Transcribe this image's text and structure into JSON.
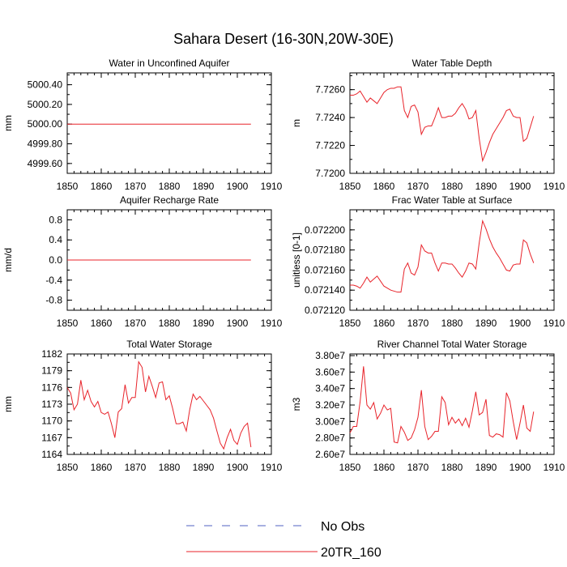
{
  "figure": {
    "title": "Sahara Desert (16-30N,20W-30E)"
  },
  "legend": {
    "entries": [
      {
        "label": "No Obs",
        "color": "#5060c0",
        "dash": true
      },
      {
        "label": "20TR_160",
        "color": "#e8232a",
        "dash": false
      }
    ]
  },
  "chart_data": [
    {
      "type": "line",
      "title": "Water in Unconfined Aquifer",
      "ylabel": "mm",
      "xlim": [
        1850,
        1910
      ],
      "xticks": [
        "1850",
        "1860",
        "1870",
        "1880",
        "1890",
        "1900",
        "1910"
      ],
      "ylim": [
        4999.5,
        5000.52
      ],
      "yticks": [
        "4999.60",
        "4999.80",
        "5000.00",
        "5000.20",
        "5000.40"
      ],
      "ytick_values": [
        4999.6,
        4999.8,
        5000.0,
        5000.2,
        5000.4
      ],
      "series": [
        {
          "name": "20TR_160",
          "color": "#e8232a",
          "x": [
            1850,
            1904
          ],
          "y": [
            5000.0,
            5000.0
          ]
        }
      ]
    },
    {
      "type": "line",
      "title": "Water Table Depth",
      "ylabel": "m",
      "xlim": [
        1850,
        1910
      ],
      "xticks": [
        "1850",
        "1860",
        "1870",
        "1880",
        "1890",
        "1900",
        "1910"
      ],
      "ylim": [
        7.72,
        7.7272
      ],
      "yticks": [
        "7.7200",
        "7.7220",
        "7.7240",
        "7.7260"
      ],
      "ytick_values": [
        7.72,
        7.722,
        7.724,
        7.726
      ],
      "series": [
        {
          "name": "20TR_160",
          "color": "#e8232a",
          "x": [
            1850,
            1851,
            1852,
            1853,
            1854,
            1855,
            1856,
            1857,
            1858,
            1859,
            1860,
            1861,
            1862,
            1863,
            1864,
            1865,
            1866,
            1867,
            1868,
            1869,
            1870,
            1871,
            1872,
            1873,
            1874,
            1875,
            1876,
            1877,
            1878,
            1879,
            1880,
            1881,
            1882,
            1883,
            1884,
            1885,
            1886,
            1887,
            1888,
            1889,
            1890,
            1891,
            1892,
            1893,
            1894,
            1895,
            1896,
            1897,
            1898,
            1899,
            1900,
            1901,
            1902,
            1903,
            1904
          ],
          "y": [
            7.7256,
            7.7256,
            7.7257,
            7.7259,
            7.7255,
            7.7251,
            7.7254,
            7.7252,
            7.725,
            7.7254,
            7.7258,
            7.726,
            7.7261,
            7.7261,
            7.7262,
            7.7262,
            7.7245,
            7.724,
            7.7248,
            7.7249,
            7.7244,
            7.7228,
            7.7233,
            7.7234,
            7.7234,
            7.724,
            7.7247,
            7.724,
            7.724,
            7.7241,
            7.7241,
            7.7243,
            7.7247,
            7.725,
            7.7246,
            7.7239,
            7.724,
            7.7245,
            7.7225,
            7.7209,
            7.7215,
            7.7222,
            7.7228,
            7.7232,
            7.7236,
            7.724,
            7.7245,
            7.7246,
            7.7241,
            7.724,
            7.724,
            7.7223,
            7.7225,
            7.7233,
            7.7241
          ]
        }
      ]
    },
    {
      "type": "line",
      "title": "Aquifer Recharge Rate",
      "ylabel": "mm/d",
      "xlim": [
        1850,
        1910
      ],
      "xticks": [
        "1850",
        "1860",
        "1870",
        "1880",
        "1890",
        "1900",
        "1910"
      ],
      "ylim": [
        -1.0,
        1.0
      ],
      "yticks": [
        "-0.8",
        "-0.4",
        "0.0",
        "0.4",
        "0.8"
      ],
      "ytick_values": [
        -0.8,
        -0.4,
        0.0,
        0.4,
        0.8
      ],
      "series": [
        {
          "name": "20TR_160",
          "color": "#e8232a",
          "x": [
            1850,
            1904
          ],
          "y": [
            0.0,
            0.0
          ]
        }
      ]
    },
    {
      "type": "line",
      "title": "Frac Water Table at Surface",
      "ylabel": "unitless [0-1]",
      "xlim": [
        1850,
        1910
      ],
      "xticks": [
        "1850",
        "1860",
        "1870",
        "1880",
        "1890",
        "1900",
        "1910"
      ],
      "ylim": [
        0.07212,
        0.07222
      ],
      "yticks": [
        "0.072120",
        "0.072140",
        "0.072160",
        "0.072180",
        "0.072200"
      ],
      "ytick_values": [
        0.07212,
        0.07214,
        0.07216,
        0.07218,
        0.0722
      ],
      "series": [
        {
          "name": "20TR_160",
          "color": "#e8232a",
          "x": [
            1850,
            1851,
            1852,
            1853,
            1854,
            1855,
            1856,
            1857,
            1858,
            1859,
            1860,
            1861,
            1862,
            1863,
            1864,
            1865,
            1866,
            1867,
            1868,
            1869,
            1870,
            1871,
            1872,
            1873,
            1874,
            1875,
            1876,
            1877,
            1878,
            1879,
            1880,
            1881,
            1882,
            1883,
            1884,
            1885,
            1886,
            1887,
            1888,
            1889,
            1890,
            1891,
            1892,
            1893,
            1894,
            1895,
            1896,
            1897,
            1898,
            1899,
            1900,
            1901,
            1902,
            1903,
            1904
          ],
          "y": [
            0.072145,
            0.072145,
            0.072144,
            0.072142,
            0.072147,
            0.072153,
            0.072148,
            0.072151,
            0.072154,
            0.072149,
            0.072144,
            0.072142,
            0.07214,
            0.072139,
            0.072138,
            0.072138,
            0.072161,
            0.072167,
            0.072157,
            0.072155,
            0.072163,
            0.072185,
            0.072179,
            0.072177,
            0.072177,
            0.072167,
            0.072159,
            0.072167,
            0.072167,
            0.072166,
            0.072166,
            0.072162,
            0.072157,
            0.072153,
            0.072159,
            0.072167,
            0.072166,
            0.072161,
            0.072187,
            0.072209,
            0.072201,
            0.072191,
            0.072183,
            0.072177,
            0.072172,
            0.072166,
            0.07216,
            0.072159,
            0.072165,
            0.072166,
            0.072166,
            0.07219,
            0.072187,
            0.072176,
            0.072167
          ]
        }
      ]
    },
    {
      "type": "line",
      "title": "Total Water Storage",
      "ylabel": "mm",
      "xlim": [
        1850,
        1910
      ],
      "xticks": [
        "1850",
        "1860",
        "1870",
        "1880",
        "1890",
        "1900",
        "1910"
      ],
      "ylim": [
        1164,
        1182
      ],
      "yticks": [
        "1164",
        "1167",
        "1170",
        "1173",
        "1176",
        "1179",
        "1182"
      ],
      "ytick_values": [
        1164,
        1167,
        1170,
        1173,
        1176,
        1179,
        1182
      ],
      "series": [
        {
          "name": "20TR_160",
          "color": "#e8232a",
          "x": [
            1850,
            1851,
            1852,
            1853,
            1854,
            1855,
            1856,
            1857,
            1858,
            1859,
            1860,
            1861,
            1862,
            1863,
            1864,
            1865,
            1866,
            1867,
            1868,
            1869,
            1870,
            1871,
            1872,
            1873,
            1874,
            1875,
            1876,
            1877,
            1878,
            1879,
            1880,
            1881,
            1882,
            1883,
            1884,
            1885,
            1886,
            1887,
            1888,
            1889,
            1890,
            1891,
            1892,
            1893,
            1894,
            1895,
            1896,
            1897,
            1898,
            1899,
            1900,
            1901,
            1902,
            1903,
            1904
          ],
          "y": [
            1176.0,
            1175.0,
            1172.0,
            1173.0,
            1177.3,
            1173.8,
            1175.5,
            1173.5,
            1172.5,
            1173.5,
            1171.5,
            1171.2,
            1171.6,
            1169.5,
            1167.0,
            1171.6,
            1172.2,
            1176.5,
            1173.2,
            1174.2,
            1174.2,
            1180.6,
            1179.6,
            1175.2,
            1178.0,
            1176.2,
            1174.2,
            1176.8,
            1177.0,
            1173.8,
            1174.5,
            1172.2,
            1169.5,
            1169.5,
            1169.8,
            1168.2,
            1172.0,
            1174.8,
            1173.8,
            1174.4,
            1173.6,
            1172.8,
            1172.0,
            1170.5,
            1168.2,
            1166.0,
            1165.0,
            1167.0,
            1168.5,
            1166.5,
            1165.8,
            1167.8,
            1169.0,
            1169.6,
            1165.3
          ]
        }
      ]
    },
    {
      "type": "line",
      "title": "River Channel Total Water Storage",
      "ylabel": "m3",
      "xlim": [
        1850,
        1910
      ],
      "xticks": [
        "1850",
        "1860",
        "1870",
        "1880",
        "1890",
        "1900",
        "1910"
      ],
      "ylim": [
        26000000,
        38200000
      ],
      "yticks": [
        "2.60e7",
        "2.80e7",
        "3.00e7",
        "3.20e7",
        "3.40e7",
        "3.60e7",
        "3.80e7"
      ],
      "ytick_values": [
        26000000,
        28000000,
        30000000,
        32000000,
        34000000,
        36000000,
        38000000
      ],
      "series": [
        {
          "name": "20TR_160",
          "color": "#e8232a",
          "x": [
            1850,
            1851,
            1852,
            1853,
            1854,
            1855,
            1856,
            1857,
            1858,
            1859,
            1860,
            1861,
            1862,
            1863,
            1864,
            1865,
            1866,
            1867,
            1868,
            1869,
            1870,
            1871,
            1872,
            1873,
            1874,
            1875,
            1876,
            1877,
            1878,
            1879,
            1880,
            1881,
            1882,
            1883,
            1884,
            1885,
            1886,
            1887,
            1888,
            1889,
            1890,
            1891,
            1892,
            1893,
            1894,
            1895,
            1896,
            1897,
            1898,
            1899,
            1900,
            1901,
            1902,
            1903,
            1904
          ],
          "y": [
            28600000,
            29400000,
            29400000,
            32400000,
            36700000,
            32000000,
            31500000,
            32300000,
            30300000,
            31000000,
            32000000,
            31400000,
            31600000,
            27500000,
            27400000,
            29400000,
            28700000,
            27700000,
            28000000,
            29000000,
            30500000,
            33800000,
            29400000,
            27800000,
            28200000,
            28800000,
            28800000,
            33000000,
            32300000,
            29600000,
            30500000,
            29800000,
            30300000,
            29500000,
            30400000,
            29300000,
            31300000,
            33600000,
            30800000,
            31100000,
            32700000,
            28300000,
            28100000,
            28500000,
            28400000,
            28100000,
            33500000,
            32500000,
            30000000,
            27800000,
            29800000,
            32000000,
            29200000,
            28800000,
            31200000
          ]
        }
      ]
    }
  ]
}
